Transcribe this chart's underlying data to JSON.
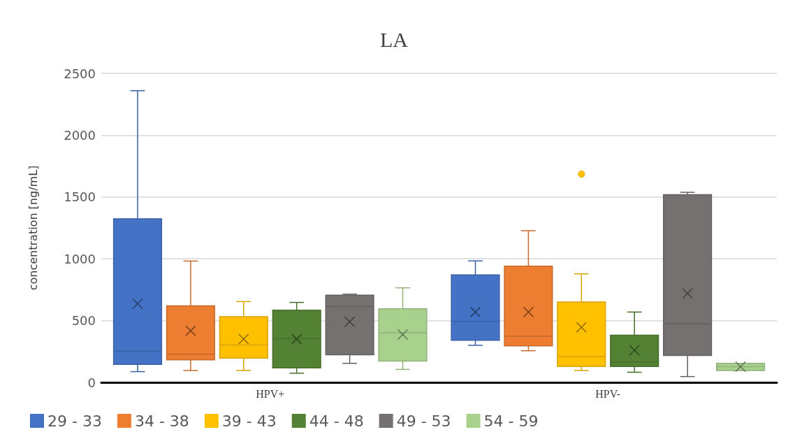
{
  "chart_data": {
    "type": "box",
    "title": "LA",
    "ylabel": "concentration [ng/mL]",
    "categories": [
      "HPV+",
      "HPV-"
    ],
    "ylim": [
      0,
      2500
    ],
    "yticks": [
      0,
      500,
      1000,
      1500,
      2000,
      2500
    ],
    "grid": "y",
    "legend": "bottom",
    "series": [
      {
        "name": "29 - 33",
        "color": "#4472c4",
        "boxes": [
          {
            "low": 87,
            "q1": 145,
            "median": 251,
            "q3": 1323,
            "high": 2360,
            "mean": 636
          },
          {
            "low": 300,
            "q1": 341,
            "median": 494,
            "q3": 869,
            "high": 983,
            "mean": 569
          }
        ]
      },
      {
        "name": "34 - 38",
        "color": "#ed7d31",
        "boxes": [
          {
            "low": 96,
            "q1": 183,
            "median": 227,
            "q3": 620,
            "high": 982,
            "mean": 418
          },
          {
            "low": 256,
            "q1": 296,
            "median": 374,
            "q3": 941,
            "high": 1227,
            "mean": 569
          }
        ]
      },
      {
        "name": "39 - 43",
        "color": "#ffc000",
        "boxes": [
          {
            "low": 96,
            "q1": 196,
            "median": 303,
            "q3": 532,
            "high": 654,
            "mean": 351
          },
          {
            "low": 96,
            "q1": 129,
            "median": 209,
            "q3": 651,
            "high": 878,
            "mean": 445,
            "outliers": [
              1690
            ]
          }
        ]
      },
      {
        "name": "44 - 48",
        "color": "#548235",
        "boxes": [
          {
            "low": 74,
            "q1": 118,
            "median": 354,
            "q3": 584,
            "high": 647,
            "mean": 350
          },
          {
            "low": 82,
            "q1": 129,
            "median": 165,
            "q3": 382,
            "high": 569,
            "mean": 260
          }
        ]
      },
      {
        "name": "49 - 53",
        "color": "#767171",
        "boxes": [
          {
            "low": 154,
            "q1": 224,
            "median": 614,
            "q3": 705,
            "high": 714,
            "mean": 491
          },
          {
            "low": 47,
            "q1": 218,
            "median": 474,
            "q3": 1518,
            "high": 1538,
            "mean": 720
          }
        ]
      },
      {
        "name": "54 - 59",
        "color": "#a9d18e",
        "boxes": [
          {
            "low": 105,
            "q1": 172,
            "median": 401,
            "q3": 596,
            "high": 765,
            "mean": 387
          },
          {
            "low": 96,
            "q1": 96,
            "median": 127,
            "q3": 154,
            "high": 154,
            "mean": 127
          }
        ]
      }
    ]
  }
}
